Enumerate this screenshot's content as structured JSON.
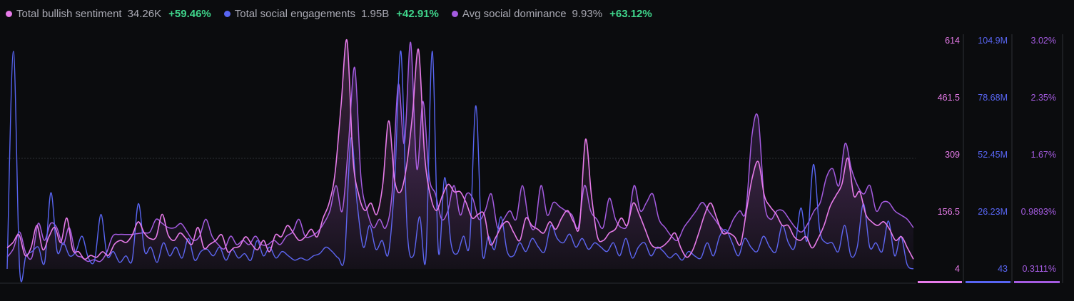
{
  "legend": [
    {
      "label": "Total bullish sentiment",
      "value": "34.26K",
      "change": "+59.46%",
      "color": "#e77be9"
    },
    {
      "label": "Total social engagements",
      "value": "1.95B",
      "change": "+42.91%",
      "color": "#5865f2"
    },
    {
      "label": "Avg social dominance",
      "value": "9.93%",
      "change": "+63.12%",
      "color": "#a45be0"
    }
  ],
  "chart_data": {
    "type": "line",
    "grid": "single horizontal reference line at middle tick",
    "axes": [
      {
        "series": "Total bullish sentiment",
        "color": "#e77be9",
        "ticks": [
          "614",
          "461.5",
          "309",
          "156.5",
          "4"
        ],
        "ylim": [
          4,
          614
        ]
      },
      {
        "series": "Total social engagements",
        "color": "#5865f2",
        "ticks": [
          "104.9M",
          "78.68M",
          "52.45M",
          "26.23M",
          "43"
        ],
        "ylim": [
          43,
          104900000
        ]
      },
      {
        "series": "Avg social dominance",
        "color": "#a45be0",
        "ticks": [
          "3.02%",
          "2.35%",
          "1.67%",
          "0.9893%",
          "0.3111%"
        ],
        "ylim": [
          0.3111,
          3.02
        ]
      }
    ],
    "series": [
      {
        "name": "Total bullish sentiment",
        "color": "#e77be9",
        "values": [
          60,
          75,
          95,
          40,
          60,
          120,
          55,
          90,
          115,
          75,
          140,
          55,
          50,
          30,
          40,
          35,
          50,
          40,
          70,
          80,
          75,
          95,
          130,
          100,
          85,
          90,
          150,
          95,
          80,
          100,
          85,
          70,
          115,
          60,
          70,
          80,
          95,
          50,
          60,
          65,
          90,
          70,
          55,
          80,
          50,
          95,
          90,
          120,
          100,
          80,
          90,
          110,
          90,
          140,
          180,
          260,
          440,
          614,
          300,
          200,
          160,
          180,
          150,
          230,
          400,
          240,
          210,
          280,
          420,
          590,
          310,
          200,
          160,
          200,
          230,
          210,
          210,
          180,
          140,
          150,
          150,
          70,
          90,
          120,
          130,
          100,
          80,
          140,
          120,
          110,
          100,
          130,
          110,
          140,
          160,
          130,
          120,
          350,
          200,
          90,
          80,
          100,
          110,
          140,
          120,
          180,
          150,
          110,
          70,
          60,
          65,
          80,
          100,
          60,
          35,
          55,
          100,
          150,
          180,
          140,
          100,
          100,
          90,
          70,
          160,
          250,
          290,
          200,
          170,
          150,
          120,
          120,
          90,
          80,
          90,
          60,
          85,
          120,
          170,
          200,
          230,
          300,
          200,
          210,
          150,
          130,
          120,
          130,
          110,
          80,
          90,
          60,
          30
        ]
      },
      {
        "name": "Total social engagements",
        "color": "#5865f2",
        "values": [
          40,
          100000000,
          40,
          6000000,
          8000000,
          10000000,
          3000000,
          35000000,
          8000000,
          12000000,
          6000000,
          8000000,
          15000000,
          5000000,
          4000000,
          25000000,
          6000000,
          8000000,
          3000000,
          6000000,
          4000000,
          30000000,
          8000000,
          10000000,
          3000000,
          12000000,
          6000000,
          10000000,
          5000000,
          14000000,
          4000000,
          8000000,
          9000000,
          6000000,
          10000000,
          4000000,
          9000000,
          5000000,
          7000000,
          4000000,
          13000000,
          6000000,
          10000000,
          5000000,
          8000000,
          6000000,
          4000000,
          5000000,
          4000000,
          6000000,
          7000000,
          10000000,
          8000000,
          5000000,
          6000000,
          60000000,
          30000000,
          10000000,
          20000000,
          9000000,
          13000000,
          7000000,
          40000000,
          100000000,
          18000000,
          6000000,
          24000000,
          5000000,
          100000000,
          8000000,
          42000000,
          12000000,
          7000000,
          15000000,
          12000000,
          75000000,
          8000000,
          15000000,
          9000000,
          24000000,
          8000000,
          6000000,
          12000000,
          8000000,
          14000000,
          10000000,
          8000000,
          20000000,
          14000000,
          12000000,
          16000000,
          10000000,
          14000000,
          9000000,
          12000000,
          10000000,
          8000000,
          12000000,
          6000000,
          14000000,
          5000000,
          10000000,
          12000000,
          6000000,
          10000000,
          8000000,
          5000000,
          7000000,
          4000000,
          8000000,
          6000000,
          5000000,
          12000000,
          6000000,
          15000000,
          18000000,
          12000000,
          6000000,
          14000000,
          10000000,
          8000000,
          15000000,
          10000000,
          8000000,
          20000000,
          12000000,
          10000000,
          28000000,
          13000000,
          48000000,
          18000000,
          12000000,
          12000000,
          8000000,
          20000000,
          6000000,
          10000000,
          30000000,
          10000000,
          12000000,
          8000000,
          22000000,
          6000000,
          15000000,
          2000000,
          40
        ]
      },
      {
        "name": "Avg social dominance",
        "color": "#a45be0",
        "values": [
          0.45,
          0.55,
          0.75,
          0.5,
          0.45,
          0.85,
          0.65,
          0.85,
          0.8,
          0.6,
          0.8,
          0.5,
          0.45,
          0.4,
          0.42,
          0.4,
          0.5,
          0.7,
          0.72,
          0.72,
          0.72,
          0.73,
          0.74,
          0.75,
          0.9,
          0.85,
          0.8,
          0.8,
          0.85,
          0.75,
          0.65,
          0.7,
          0.9,
          0.7,
          0.6,
          0.55,
          0.7,
          0.6,
          0.65,
          0.6,
          0.7,
          0.6,
          0.6,
          0.65,
          0.6,
          0.7,
          0.75,
          0.9,
          0.7,
          0.7,
          0.75,
          0.85,
          1.0,
          1.3,
          1.0,
          1.8,
          2.7,
          1.4,
          1.0,
          0.8,
          0.9,
          0.8,
          1.2,
          2.5,
          1.8,
          3.0,
          1.5,
          2.3,
          1.4,
          1.2,
          0.9,
          1.0,
          1.3,
          0.95,
          1.2,
          1.15,
          0.9,
          1.0,
          1.2,
          0.8,
          0.9,
          1.0,
          0.9,
          1.3,
          0.9,
          0.8,
          1.3,
          0.95,
          1.1,
          1.05,
          1.0,
          0.95,
          0.8,
          1.3,
          1.0,
          0.9,
          0.8,
          1.15,
          0.9,
          0.8,
          0.85,
          1.3,
          1.0,
          1.1,
          1.2,
          0.9,
          0.8,
          0.7,
          0.65,
          0.8,
          0.9,
          1.0,
          1.1,
          1.0,
          0.9,
          0.8,
          0.75,
          0.9,
          1.0,
          1.0,
          1.9,
          2.1,
          1.1,
          0.9,
          1.0,
          1.0,
          0.9,
          0.8,
          0.75,
          0.85,
          1.0,
          1.1,
          1.4,
          1.5,
          1.3,
          1.8,
          1.5,
          1.3,
          1.2,
          1.3,
          1.0,
          1.1,
          1.1,
          1.0,
          0.95,
          0.9,
          0.8
        ]
      }
    ]
  }
}
